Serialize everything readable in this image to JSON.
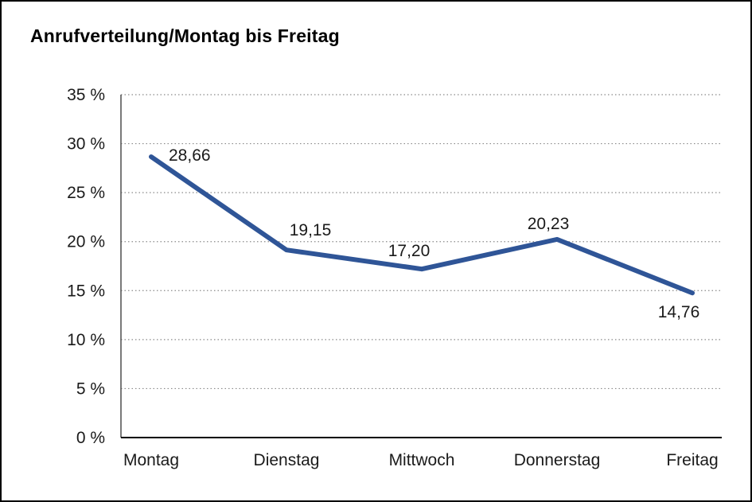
{
  "title": "Anrufverteilung/Montag bis Freitag",
  "chart_data": {
    "type": "line",
    "title": "Anrufverteilung/Montag bis Freitag",
    "categories": [
      "Montag",
      "Dienstag",
      "Mittwoch",
      "Donnerstag",
      "Freitag"
    ],
    "values": [
      28.66,
      19.15,
      17.2,
      20.23,
      14.76
    ],
    "value_labels": [
      "28,66",
      "19,15",
      "17,20",
      "20,23",
      "14,76"
    ],
    "xlabel": "",
    "ylabel": "",
    "ylim": [
      0,
      35
    ],
    "ytick_step": 5,
    "ytick_suffix": " %",
    "grid": "horizontal-dotted",
    "legend": "none",
    "colors": {
      "line": "#2f5597",
      "grid": "#8a8a8a",
      "axis": "#4d4d4d",
      "text": "#1a1a1a",
      "background": "#ffffff",
      "border": "#000000"
    }
  }
}
